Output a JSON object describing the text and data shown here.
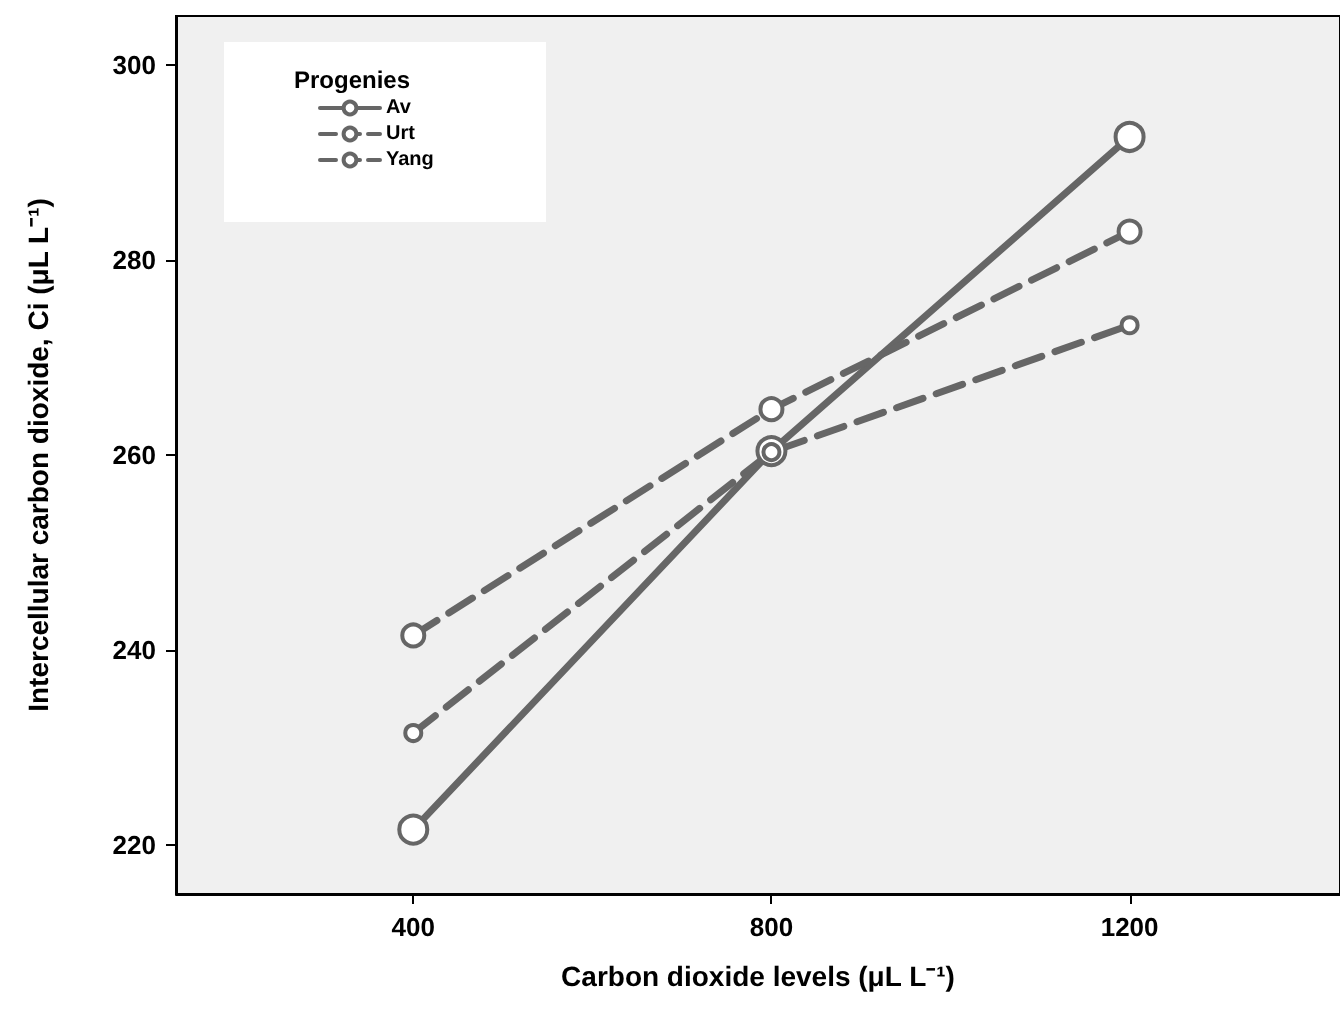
{
  "chart_data": {
    "type": "line",
    "xlabel": "Carbon dioxide levels (μL L⁻¹)",
    "ylabel": "Intercellular carbon dioxide, Ci (μL L⁻¹)",
    "legend_title": "Progenies",
    "x": [
      400,
      800,
      1200
    ],
    "series": [
      {
        "name": "Av",
        "color": "#666666",
        "line_style": "solid",
        "values": [
          221.6,
          260.4,
          292.6
        ]
      },
      {
        "name": "Urt",
        "color": "#666666",
        "line_style": "dashed",
        "values": [
          241.5,
          264.7,
          282.9
        ]
      },
      {
        "name": "Yang",
        "color": "#666666",
        "line_style": "dashed",
        "values": [
          231.5,
          260.3,
          273.3
        ]
      }
    ],
    "xlim": [
      135,
      1435
    ],
    "xticks": [
      400,
      800,
      1200
    ],
    "ylim": [
      215,
      305
    ],
    "yticks": [
      220,
      240,
      260,
      280,
      300
    ],
    "grid": false,
    "legend": "top left",
    "marker": "circle"
  }
}
